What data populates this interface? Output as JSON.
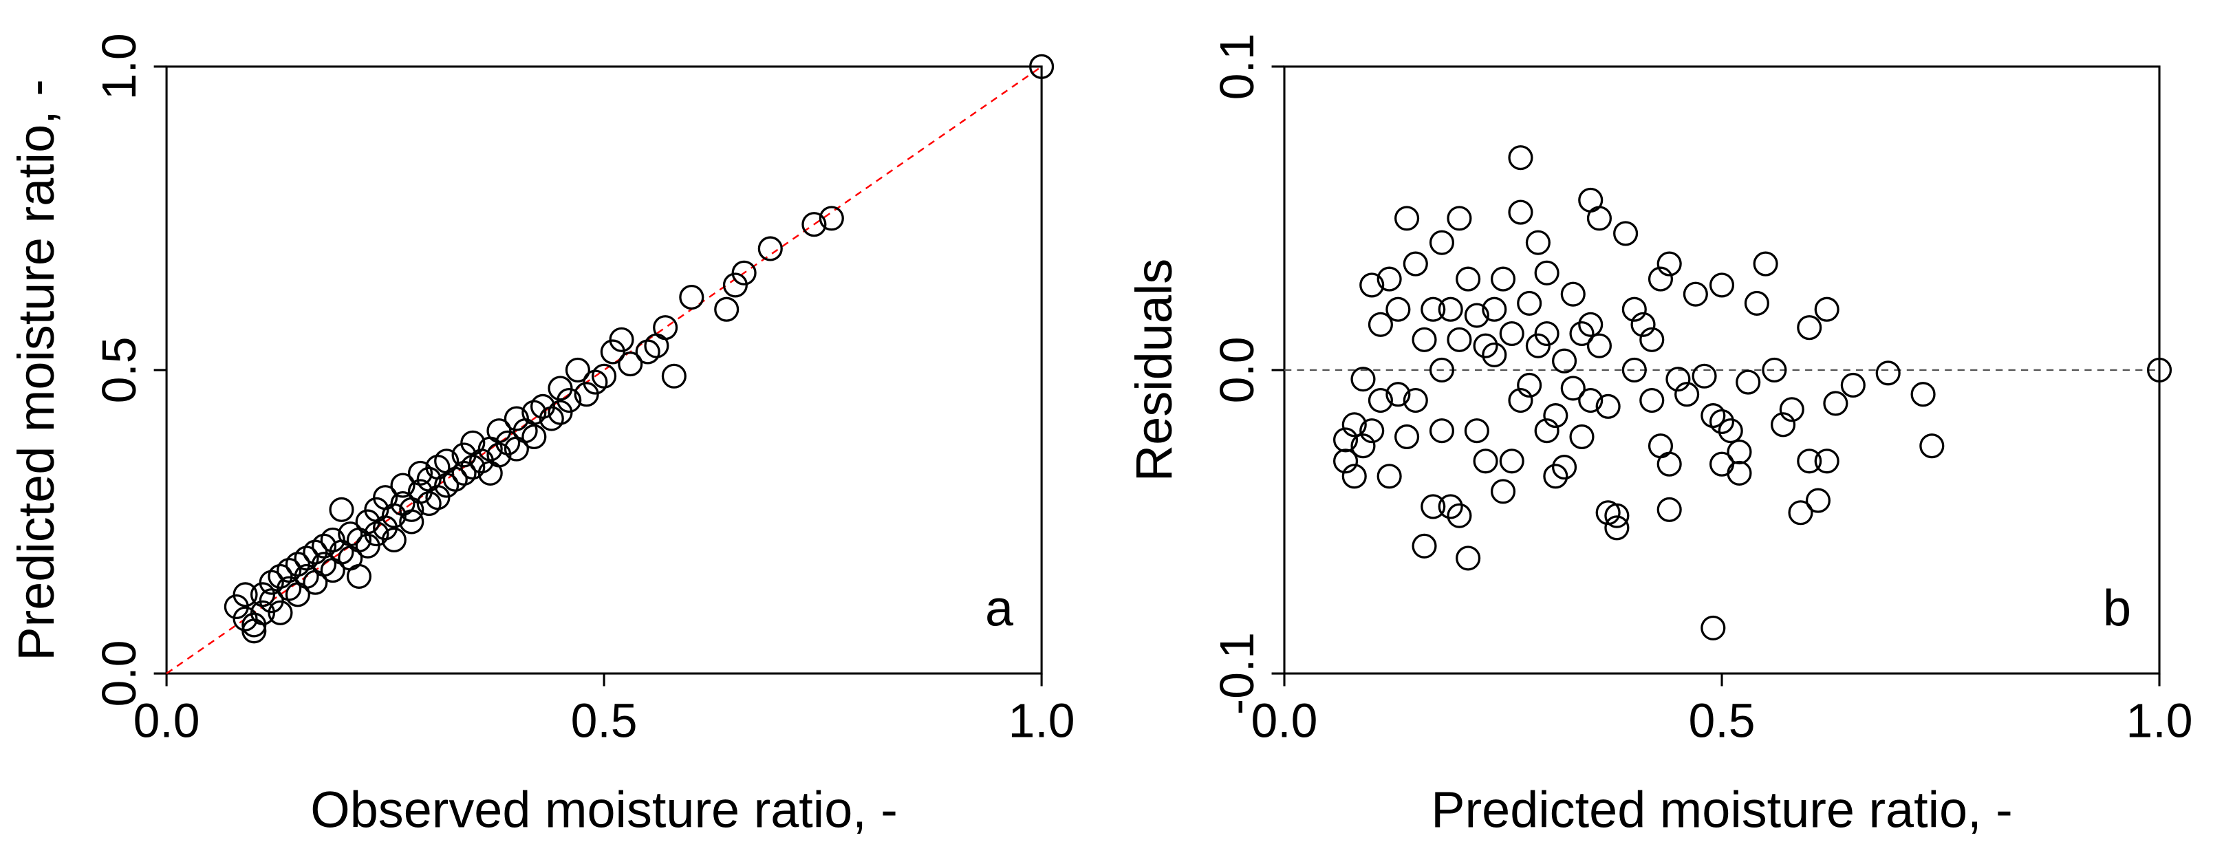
{
  "chart_data": [
    {
      "type": "scatter",
      "xlabel": "Observed moisture ratio, -",
      "ylabel": "Predicted moisture ratio, -",
      "annotation": "a",
      "xlim": [
        0,
        1
      ],
      "ylim": [
        0,
        1
      ],
      "xticks": [
        {
          "value": 0,
          "label": "0.0"
        },
        0.5,
        {
          "value": 1,
          "label": "1.0"
        }
      ],
      "yticks": [
        {
          "value": 0,
          "label": "0.0"
        },
        0.5,
        {
          "value": 1,
          "label": "1.0"
        }
      ],
      "marker_color": "#000000",
      "reference_line": "identity",
      "reference_color": "#ff0000",
      "x": [
        0.08,
        0.09,
        0.09,
        0.1,
        0.1,
        0.11,
        0.11,
        0.12,
        0.12,
        0.13,
        0.13,
        0.14,
        0.14,
        0.15,
        0.15,
        0.16,
        0.16,
        0.17,
        0.17,
        0.18,
        0.18,
        0.19,
        0.19,
        0.2,
        0.2,
        0.21,
        0.21,
        0.22,
        0.22,
        0.23,
        0.23,
        0.24,
        0.24,
        0.25,
        0.25,
        0.26,
        0.26,
        0.27,
        0.27,
        0.28,
        0.28,
        0.29,
        0.29,
        0.3,
        0.3,
        0.31,
        0.31,
        0.32,
        0.32,
        0.33,
        0.34,
        0.34,
        0.35,
        0.35,
        0.36,
        0.37,
        0.37,
        0.38,
        0.38,
        0.39,
        0.4,
        0.4,
        0.41,
        0.42,
        0.42,
        0.43,
        0.44,
        0.45,
        0.45,
        0.46,
        0.47,
        0.48,
        0.49,
        0.5,
        0.51,
        0.52,
        0.53,
        0.55,
        0.56,
        0.57,
        0.58,
        0.6,
        0.64,
        0.65,
        0.66,
        0.69,
        0.74,
        0.76,
        1.0
      ],
      "values": [
        0.11,
        0.13,
        0.09,
        0.07,
        0.08,
        0.1,
        0.13,
        0.15,
        0.12,
        0.16,
        0.1,
        0.14,
        0.17,
        0.13,
        0.18,
        0.16,
        0.19,
        0.15,
        0.2,
        0.18,
        0.21,
        0.17,
        0.22,
        0.2,
        0.27,
        0.19,
        0.23,
        0.16,
        0.22,
        0.25,
        0.21,
        0.27,
        0.23,
        0.24,
        0.29,
        0.26,
        0.22,
        0.28,
        0.31,
        0.27,
        0.25,
        0.3,
        0.33,
        0.28,
        0.32,
        0.34,
        0.29,
        0.31,
        0.35,
        0.32,
        0.36,
        0.33,
        0.34,
        0.38,
        0.35,
        0.37,
        0.33,
        0.4,
        0.36,
        0.38,
        0.42,
        0.37,
        0.4,
        0.43,
        0.39,
        0.44,
        0.42,
        0.47,
        0.43,
        0.45,
        0.5,
        0.46,
        0.48,
        0.49,
        0.53,
        0.55,
        0.51,
        0.53,
        0.54,
        0.57,
        0.49,
        0.62,
        0.6,
        0.64,
        0.66,
        0.7,
        0.74,
        0.75,
        1.0
      ]
    },
    {
      "type": "scatter",
      "xlabel": "Predicted moisture ratio, -",
      "ylabel": "Residuals",
      "annotation": "b",
      "xlim": [
        0,
        1
      ],
      "ylim": [
        -0.1,
        0.1
      ],
      "xticks": [
        {
          "value": 0,
          "label": "0.0"
        },
        0.5,
        {
          "value": 1,
          "label": "1.0"
        }
      ],
      "yticks": [
        -0.1,
        {
          "value": 0,
          "label": "0.0"
        },
        0.1
      ],
      "marker_color": "#000000",
      "reference_line": "zero",
      "reference_color": "#555555",
      "x": [
        1.0,
        0.49,
        0.74,
        0.73,
        0.69,
        0.65,
        0.63,
        0.62,
        0.61,
        0.6,
        0.59,
        0.62,
        0.6,
        0.55,
        0.54,
        0.56,
        0.57,
        0.58,
        0.53,
        0.52,
        0.52,
        0.51,
        0.5,
        0.5,
        0.49,
        0.48,
        0.5,
        0.47,
        0.46,
        0.45,
        0.44,
        0.43,
        0.43,
        0.44,
        0.44,
        0.42,
        0.41,
        0.4,
        0.39,
        0.38,
        0.38,
        0.37,
        0.36,
        0.35,
        0.37,
        0.36,
        0.35,
        0.34,
        0.34,
        0.33,
        0.32,
        0.32,
        0.31,
        0.3,
        0.3,
        0.29,
        0.28,
        0.27,
        0.27,
        0.26,
        0.26,
        0.25,
        0.25,
        0.24,
        0.23,
        0.22,
        0.22,
        0.21,
        0.21,
        0.2,
        0.2,
        0.2,
        0.19,
        0.18,
        0.18,
        0.18,
        0.17,
        0.17,
        0.16,
        0.16,
        0.15,
        0.15,
        0.14,
        0.14,
        0.13,
        0.13,
        0.12,
        0.12,
        0.11,
        0.11,
        0.1,
        0.1,
        0.09,
        0.09,
        0.08,
        0.08,
        0.07,
        0.07,
        0.28,
        0.29,
        0.31,
        0.33,
        0.24,
        0.23,
        0.19,
        0.27,
        0.3,
        0.35,
        0.4,
        0.42
      ],
      "values": [
        0.0,
        -0.085,
        -0.025,
        -0.008,
        -0.001,
        -0.005,
        -0.011,
        -0.03,
        -0.043,
        -0.03,
        -0.047,
        0.02,
        0.014,
        0.035,
        0.022,
        0.0,
        -0.018,
        -0.013,
        -0.004,
        -0.027,
        -0.034,
        -0.02,
        -0.017,
        -0.031,
        -0.015,
        -0.002,
        0.028,
        0.025,
        -0.008,
        -0.003,
        0.035,
        0.03,
        -0.025,
        -0.031,
        -0.046,
        -0.01,
        0.015,
        0.02,
        0.045,
        -0.048,
        -0.052,
        -0.047,
        0.05,
        0.056,
        -0.012,
        0.008,
        0.015,
        0.012,
        -0.022,
        0.025,
        0.003,
        -0.032,
        -0.035,
        0.032,
        0.012,
        0.042,
        0.022,
        0.07,
        0.052,
        0.012,
        -0.03,
        -0.04,
        0.03,
        0.005,
        -0.03,
        -0.02,
        0.018,
        0.03,
        -0.062,
        -0.048,
        0.05,
        0.01,
        -0.045,
        0.042,
        0.0,
        -0.02,
        -0.045,
        0.02,
        -0.058,
        0.01,
        -0.01,
        0.035,
        0.05,
        -0.022,
        0.02,
        -0.008,
        -0.035,
        0.03,
        0.015,
        -0.01,
        0.028,
        -0.02,
        -0.003,
        -0.025,
        -0.018,
        -0.035,
        -0.03,
        -0.023,
        -0.005,
        0.008,
        -0.015,
        -0.006,
        0.02,
        0.008,
        0.02,
        -0.01,
        -0.02,
        -0.01,
        0.0,
        0.01
      ]
    }
  ]
}
